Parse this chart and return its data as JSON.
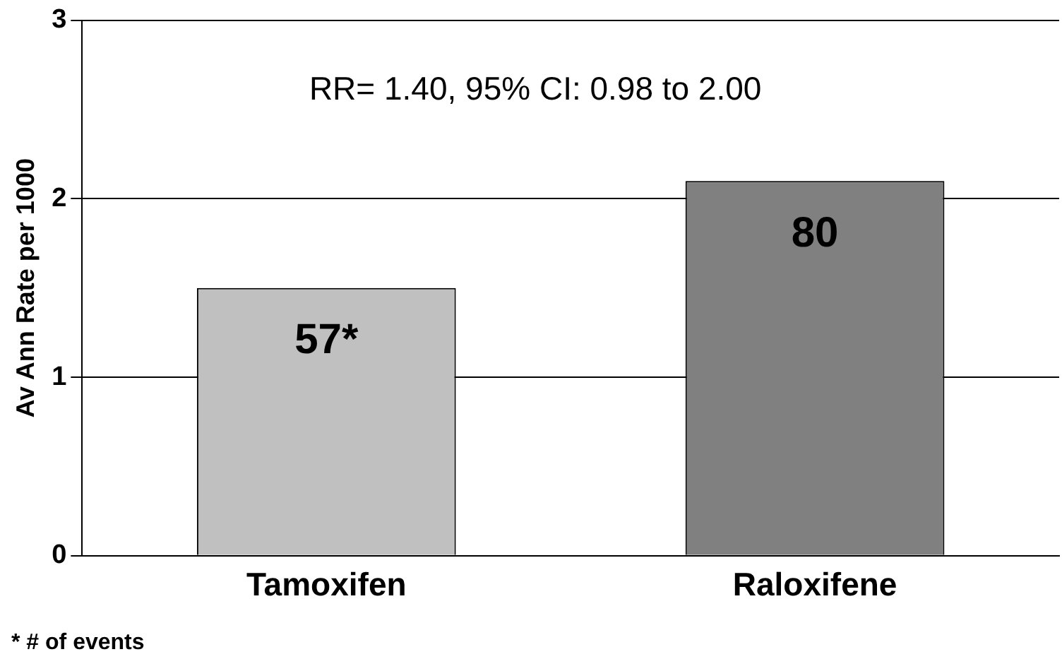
{
  "chart_data": {
    "type": "bar",
    "ylabel": "Av Ann Rate per 1000",
    "categories": [
      "Tamoxifen",
      "Raloxifene"
    ],
    "values": [
      1.5,
      2.1
    ],
    "colors": [
      "#c0c0c0",
      "#808080"
    ],
    "ylim": [
      0,
      3
    ],
    "yticks": [
      0,
      1,
      2,
      3
    ],
    "grid": "y",
    "annotations": [
      "RR= 1.40, 95% CI: 0.98 to 2.00",
      {
        "text": "57*",
        "x": "Tamoxifen",
        "y": 1.5
      },
      {
        "text": "80",
        "x": "Raloxifene",
        "y": 2.1
      },
      "* # of events"
    ]
  }
}
